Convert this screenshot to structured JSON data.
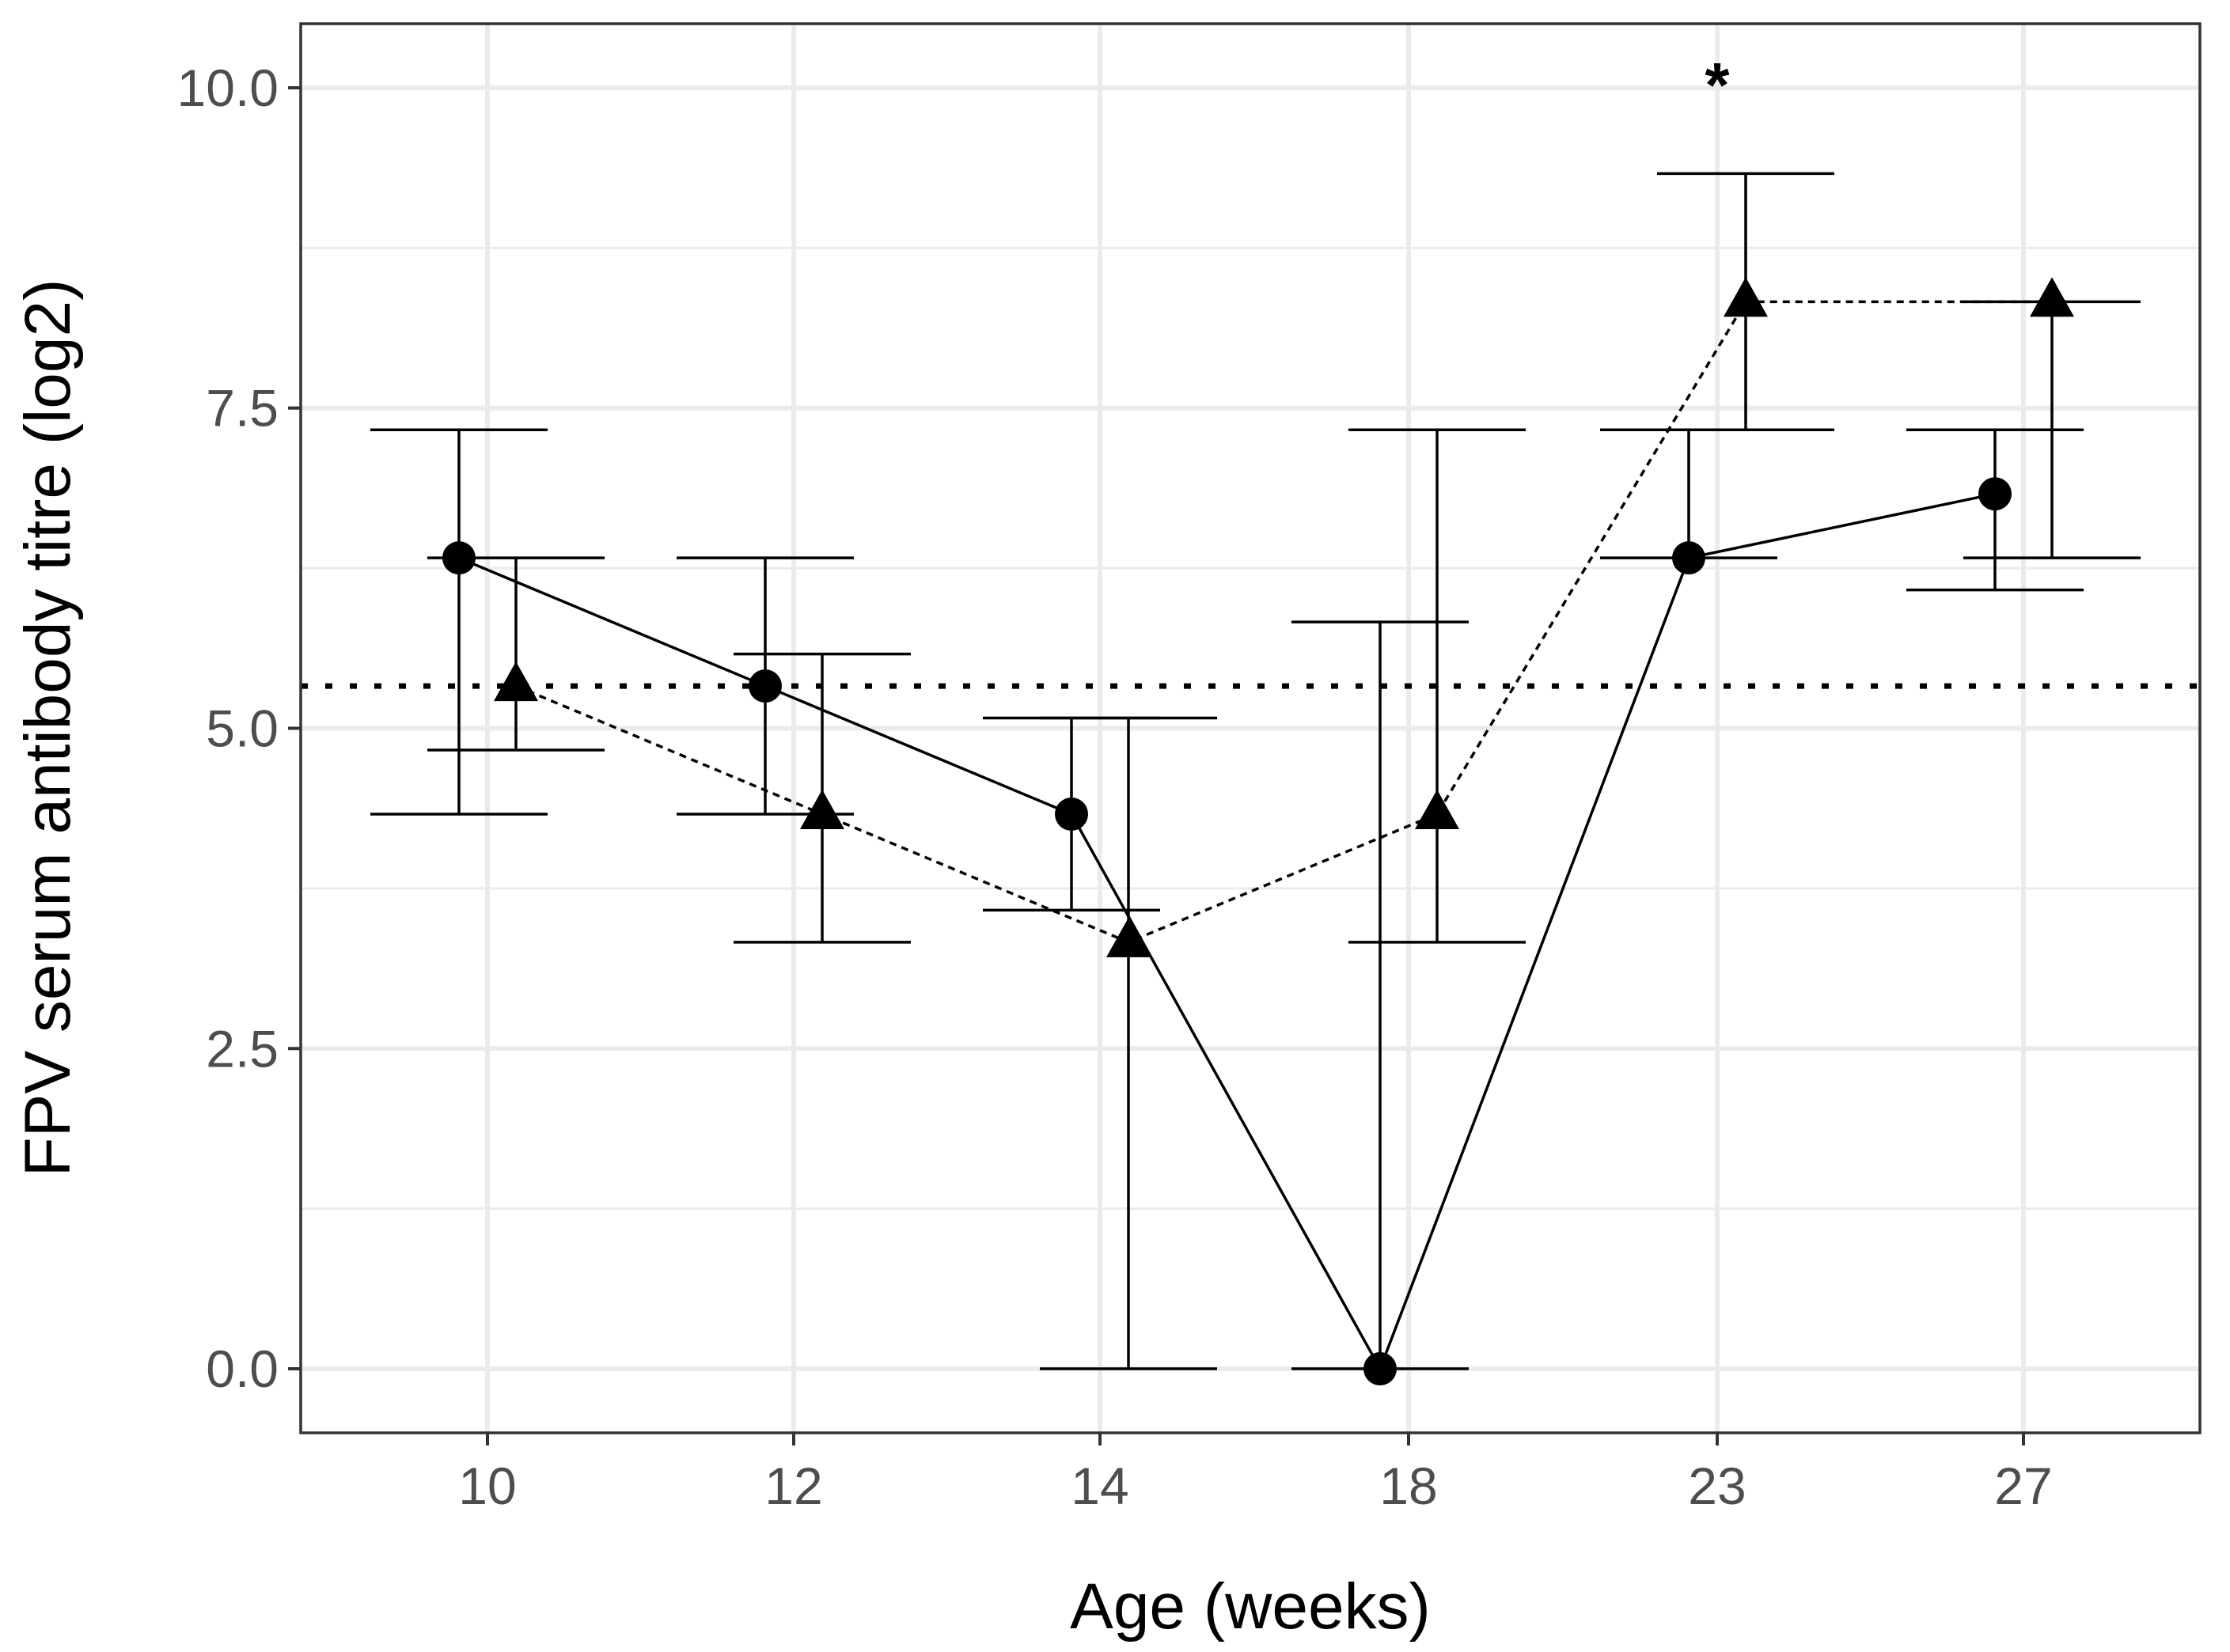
{
  "chart_data": {
    "type": "line",
    "title": "",
    "xlabel": "Age (weeks)",
    "ylabel": "FPV serum antibody titre (log2)",
    "categories": [
      "10",
      "12",
      "14",
      "18",
      "23",
      "27"
    ],
    "ylim": [
      -0.5,
      10.5
    ],
    "yticks": [
      0.0,
      2.5,
      5.0,
      7.5,
      10.0
    ],
    "ytick_labels": [
      "0.0",
      "2.5",
      "5.0",
      "7.5",
      "10.0"
    ],
    "grid": true,
    "legend": "none",
    "threshold": 5.33,
    "annotations": [
      {
        "text": "*",
        "category": "23",
        "y": 10.1
      }
    ],
    "series": [
      {
        "name": "circle-solid",
        "marker": "circle",
        "line": "solid",
        "values": [
          6.33,
          5.33,
          4.33,
          0.0,
          6.33,
          6.83
        ],
        "err_low": [
          4.33,
          4.33,
          3.58,
          0.0,
          6.33,
          6.08
        ],
        "err_high": [
          7.33,
          6.33,
          5.08,
          5.83,
          7.33,
          7.33
        ]
      },
      {
        "name": "triangle-dashed",
        "marker": "triangle",
        "line": "dashed",
        "values": [
          5.33,
          4.33,
          3.33,
          4.33,
          8.33,
          8.33
        ],
        "err_low": [
          4.83,
          3.33,
          0.0,
          3.33,
          7.33,
          6.33
        ],
        "err_high": [
          6.33,
          5.58,
          5.08,
          7.33,
          9.33,
          8.33
        ]
      }
    ]
  }
}
